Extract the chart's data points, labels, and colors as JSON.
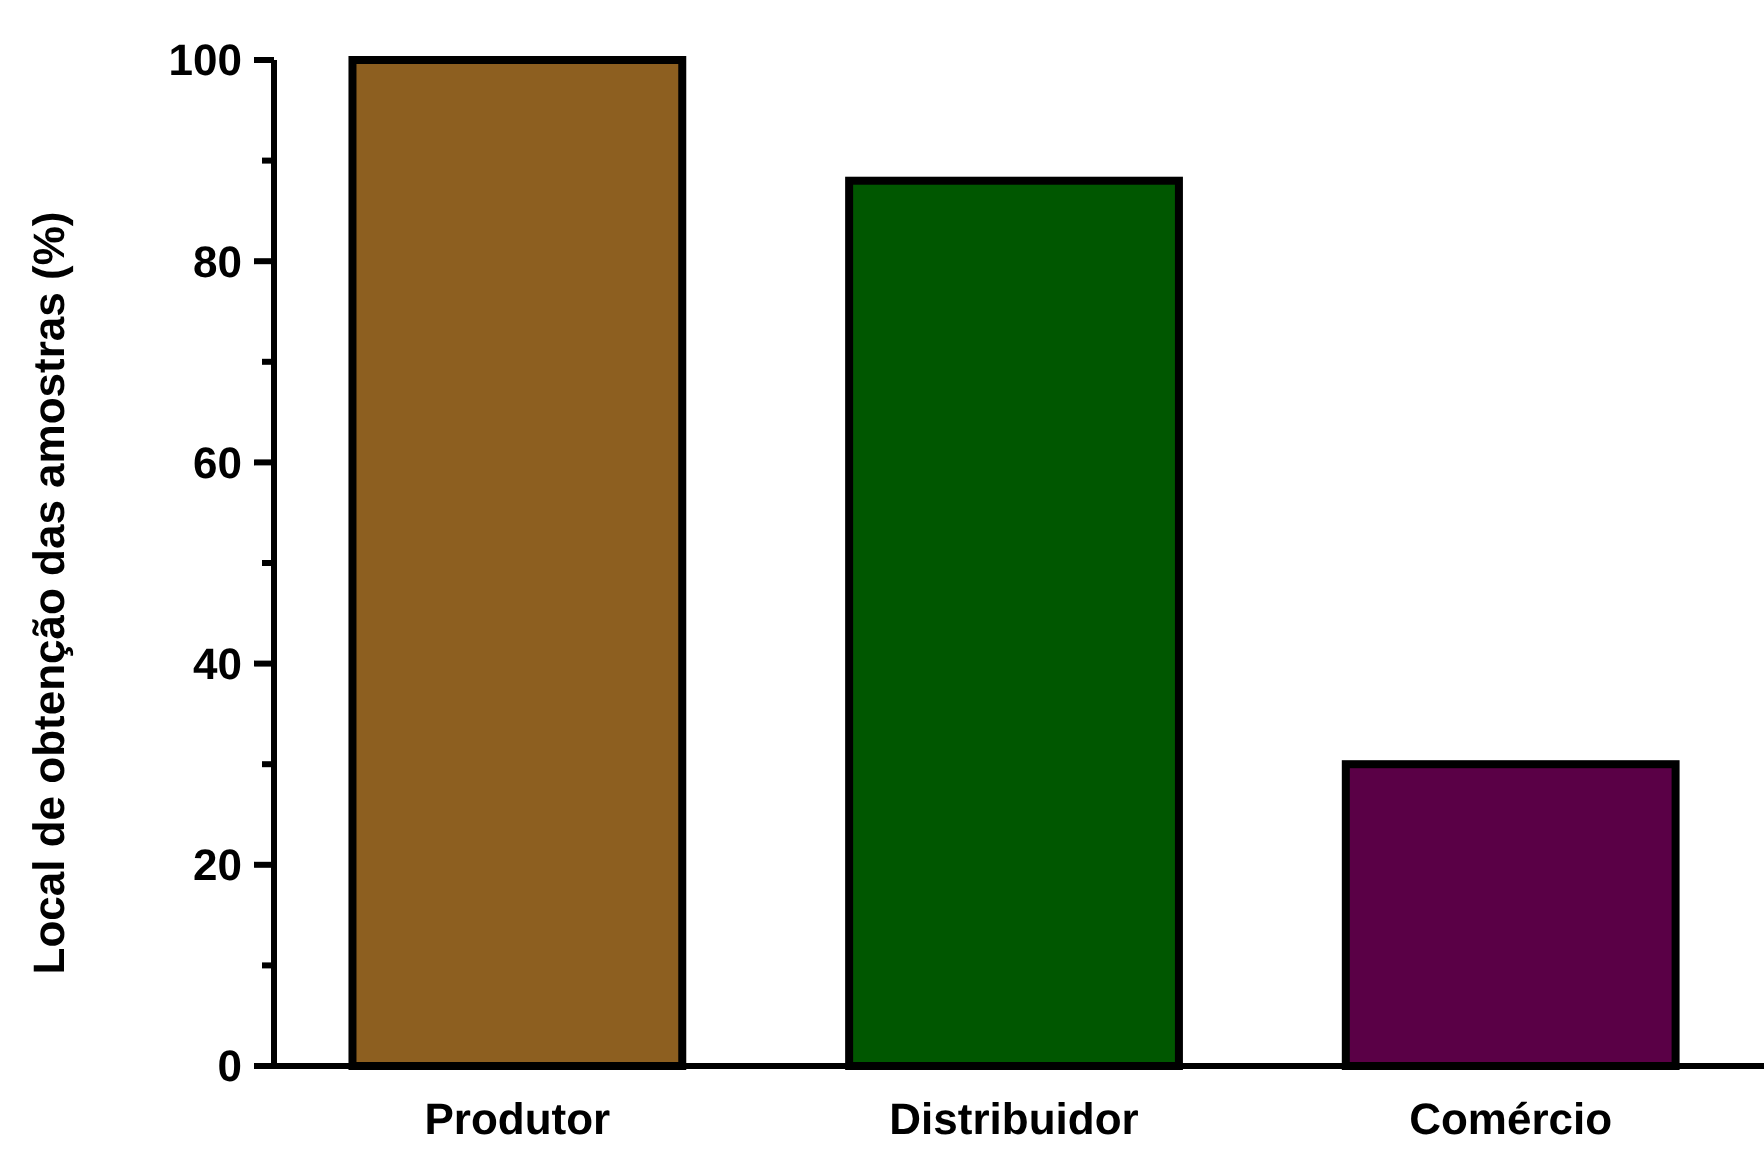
{
  "chart_data": {
    "type": "bar",
    "ylabel": "Local de obtenção das amostras (%)",
    "categories": [
      "Produtor",
      "Distribuidor",
      "Comércio"
    ],
    "values": [
      100,
      88,
      30
    ],
    "colors": [
      "#8d5f20",
      "#005700",
      "#5a0046"
    ],
    "ylim": [
      0,
      100
    ],
    "yticks": [
      0,
      {
        "value": 10,
        "label": null
      },
      20,
      {
        "value": 30,
        "label": null
      },
      40,
      {
        "value": 50,
        "label": null
      },
      60,
      {
        "value": 70,
        "label": null
      },
      80,
      {
        "value": 90,
        "label": null
      },
      100
    ],
    "grid": false
  }
}
